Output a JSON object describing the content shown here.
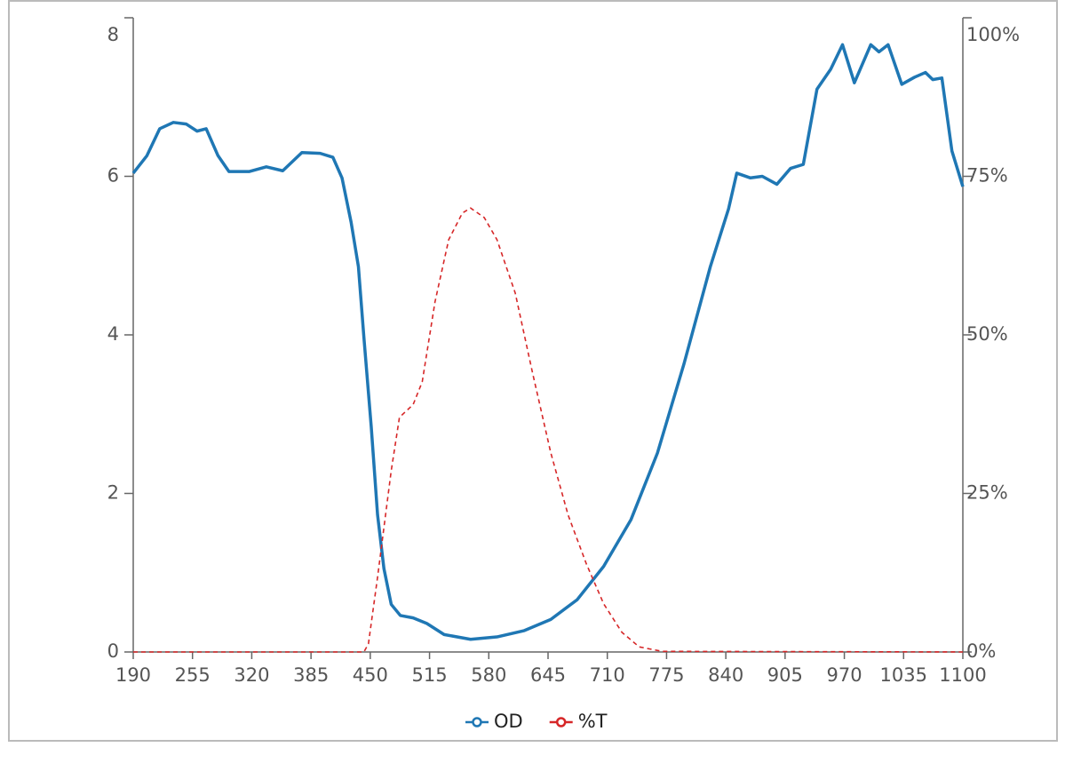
{
  "chart_data": {
    "type": "line",
    "xlim": [
      190,
      1100
    ],
    "xticks": [
      190,
      255,
      320,
      385,
      450,
      515,
      580,
      645,
      710,
      775,
      840,
      905,
      970,
      1035,
      1100
    ],
    "ylim": [
      0,
      8
    ],
    "yticks": [
      0,
      2,
      4,
      6,
      8
    ],
    "y2lim": [
      0,
      100
    ],
    "y2ticks": [
      {
        "value": 0,
        "label": "0%"
      },
      {
        "value": 25,
        "label": "25%"
      },
      {
        "value": 50,
        "label": "50%"
      },
      {
        "value": 75,
        "label": "75%"
      },
      {
        "value": 100,
        "label": "100%"
      }
    ],
    "legend": "bottom",
    "series": [
      {
        "name": "OD",
        "color": "#1f77b4",
        "dash": false,
        "x": [
          190,
          205,
          219,
          234,
          248,
          260,
          270,
          283,
          295,
          317,
          336,
          354,
          375,
          395,
          409,
          419,
          429,
          437,
          443,
          451,
          458,
          465,
          473,
          483,
          497,
          512,
          531,
          560,
          589,
          619,
          648,
          677,
          706,
          736,
          765,
          794,
          823,
          843,
          852,
          867,
          880,
          896,
          911,
          925,
          940,
          955,
          968,
          981,
          999,
          1008,
          1018,
          1033,
          1047,
          1059,
          1067,
          1077,
          1088,
          1100
        ],
        "values": [
          6.04,
          6.26,
          6.6,
          6.68,
          6.66,
          6.57,
          6.6,
          6.26,
          6.06,
          6.06,
          6.12,
          6.07,
          6.3,
          6.29,
          6.24,
          5.98,
          5.42,
          4.86,
          3.97,
          2.85,
          1.73,
          1.05,
          0.6,
          0.46,
          0.43,
          0.36,
          0.22,
          0.16,
          0.19,
          0.27,
          0.41,
          0.66,
          1.08,
          1.67,
          2.51,
          3.63,
          4.86,
          5.59,
          6.04,
          5.98,
          6.0,
          5.9,
          6.1,
          6.15,
          7.1,
          7.35,
          7.66,
          7.18,
          7.66,
          7.57,
          7.66,
          7.16,
          7.25,
          7.31,
          7.22,
          7.24,
          6.32,
          5.87
        ]
      },
      {
        "name": "%T",
        "color": "#d62728",
        "dash": true,
        "axis": "y2",
        "x": [
          190,
          443,
          448,
          458,
          473,
          482,
          497,
          507,
          521,
          536,
          551,
          560,
          575,
          589,
          609,
          628,
          648,
          667,
          687,
          706,
          726,
          745,
          770,
          1100
        ],
        "values": [
          0,
          0,
          1.3,
          11.8,
          28.6,
          37,
          39,
          42.6,
          55.2,
          65,
          69.2,
          70,
          68.5,
          65,
          56.6,
          44,
          31.4,
          21.6,
          13.9,
          7.6,
          3.1,
          0.8,
          0.1,
          0
        ]
      }
    ]
  }
}
